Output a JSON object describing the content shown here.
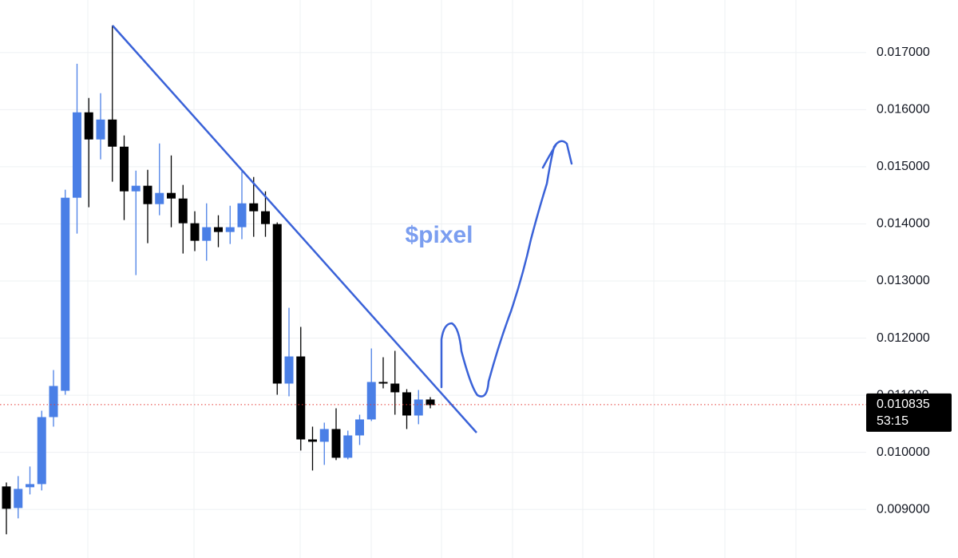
{
  "chart_data": {
    "type": "candlestick",
    "annotation": "$pixel",
    "up_color": "#4a7fe6",
    "down_color": "#000000",
    "grid": true,
    "categories": [
      null,
      null,
      null,
      null,
      null,
      null,
      null,
      null,
      null,
      null,
      null,
      null,
      null,
      null,
      null,
      null,
      null,
      null,
      null,
      null,
      null,
      null,
      null,
      null,
      null,
      null,
      null,
      null,
      null,
      null,
      null,
      null,
      null,
      null,
      null,
      null,
      null
    ],
    "open": [
      0.009403,
      0.009025,
      0.009389,
      0.009444,
      0.010617,
      0.011078,
      0.014458,
      0.015953,
      0.015478,
      0.015827,
      0.015352,
      0.01457,
      0.014668,
      0.014346,
      0.014542,
      0.014444,
      0.014011,
      0.013704,
      0.013942,
      0.013858,
      0.013942,
      0.01436,
      0.014221,
      0.013997,
      0.011204,
      0.011679,
      0.010226,
      0.010185,
      0.010408,
      0.009905,
      0.010296,
      0.010576,
      0.011232,
      0.011204,
      0.011051,
      0.010645,
      0.010925
    ],
    "high": [
      0.009472,
      0.009584,
      0.009752,
      0.010729,
      0.011441,
      0.014598,
      0.016804,
      0.016204,
      0.016288,
      0.017475,
      0.015548,
      0.014933,
      0.014947,
      0.015408,
      0.015198,
      0.014682,
      0.014221,
      0.01436,
      0.014151,
      0.014318,
      0.014919,
      0.014821,
      0.01457,
      0.014025,
      0.012531,
      0.012196,
      0.01045,
      0.01052,
      0.010771,
      0.01038,
      0.010659,
      0.011819,
      0.011665,
      0.011777,
      0.011106,
      0.011092,
      0.010967
    ],
    "low": [
      0.008565,
      0.008844,
      0.009263,
      0.009333,
      0.01045,
      0.011009,
      0.01383,
      0.014291,
      0.015129,
      0.014738,
      0.014067,
      0.013103,
      0.013662,
      0.014151,
      0.013941,
      0.013481,
      0.013523,
      0.013355,
      0.013592,
      0.013648,
      0.013732,
      0.013774,
      0.013774,
      0.011009,
      0.010981,
      0.010031,
      0.009682,
      0.00978,
      0.009864,
      0.009878,
      0.010129,
      0.010548,
      0.01112,
      0.010659,
      0.010408,
      0.010492,
      0.010771
    ],
    "close": [
      0.009012,
      0.00936,
      0.009444,
      0.010617,
      0.011162,
      0.014458,
      0.015953,
      0.015478,
      0.015827,
      0.015352,
      0.01457,
      0.014668,
      0.014346,
      0.014542,
      0.014444,
      0.014011,
      0.013704,
      0.013942,
      0.013858,
      0.013942,
      0.01436,
      0.014221,
      0.013997,
      0.011204,
      0.011679,
      0.010226,
      0.010185,
      0.010408,
      0.009905,
      0.010296,
      0.010576,
      0.011232,
      0.011204,
      0.011051,
      0.010645,
      0.010925,
      0.010827
    ],
    "ylim": [
      0.00815,
      0.01792
    ],
    "yticks": [
      {
        "value": 0.009,
        "label": "0.009000"
      },
      {
        "value": 0.01,
        "label": "0.010000"
      },
      {
        "value": 0.011,
        "label": "0.011000"
      },
      {
        "value": 0.012,
        "label": "0.012000"
      },
      {
        "value": 0.013,
        "label": "0.013000"
      },
      {
        "value": 0.014,
        "label": "0.014000"
      },
      {
        "value": 0.015,
        "label": "0.015000"
      },
      {
        "value": 0.016,
        "label": "0.016000"
      },
      {
        "value": 0.017,
        "label": "0.017000"
      }
    ],
    "last_price": 0.010835,
    "last_price_color": "#e53935",
    "countdown": "53:15"
  }
}
